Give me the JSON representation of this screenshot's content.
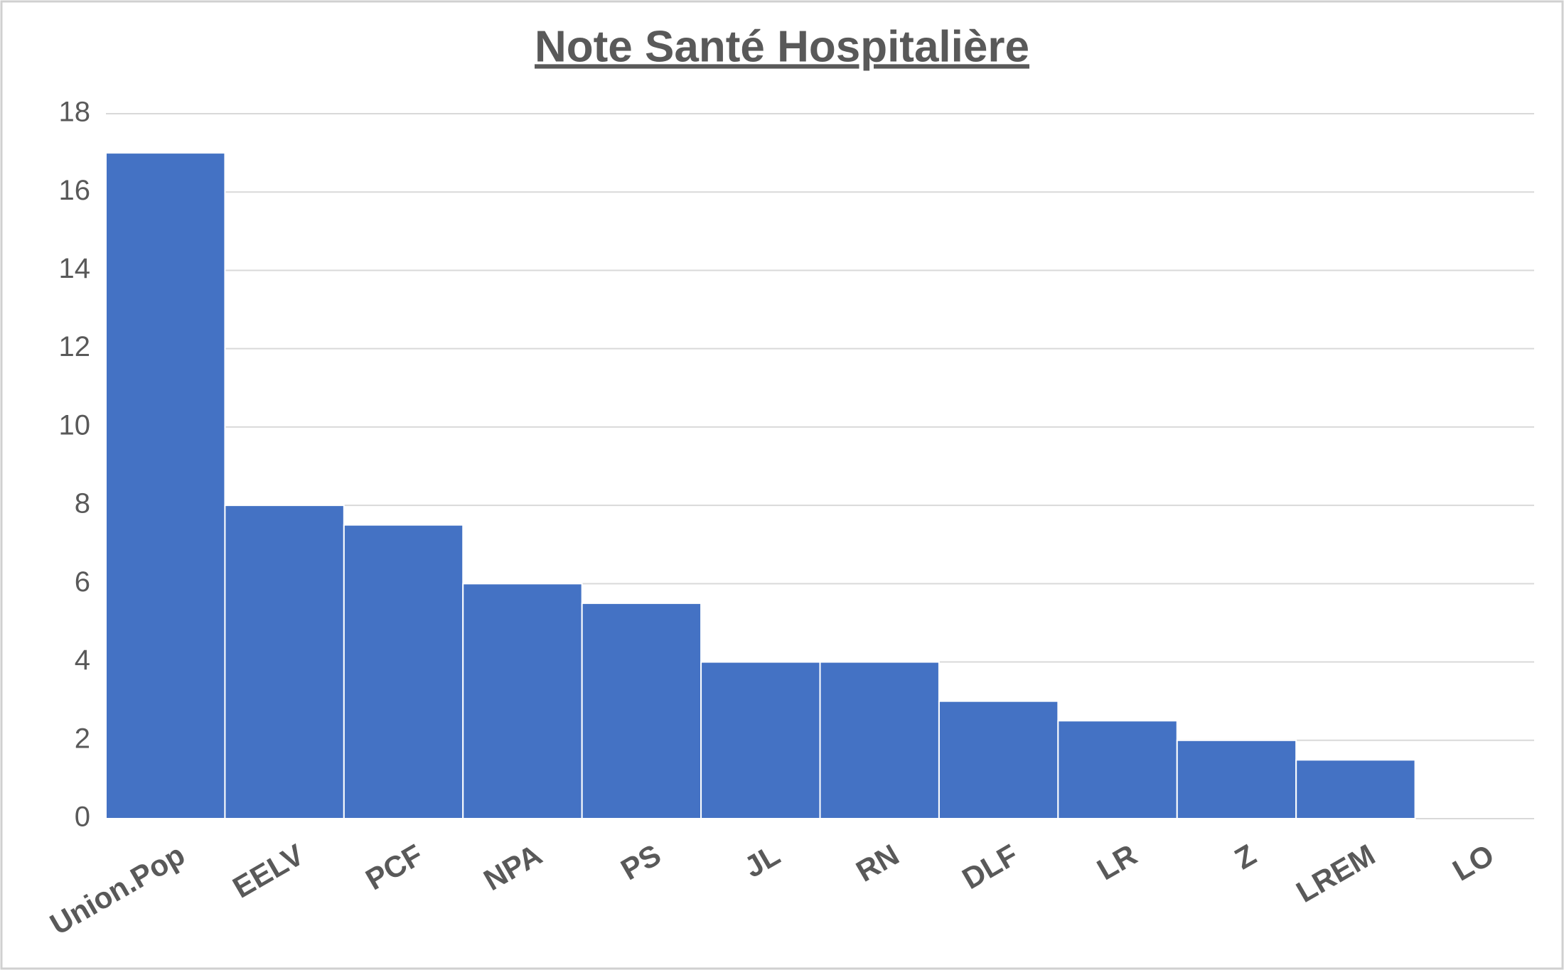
{
  "chart_data": {
    "type": "bar",
    "title": "Note Santé Hospitalière",
    "categories": [
      "Union.Pop",
      "EELV",
      "PCF",
      "NPA",
      "PS",
      "JL",
      "RN",
      "DLF",
      "LR",
      "Z",
      "LREM",
      "LO"
    ],
    "values": [
      17,
      8,
      7.5,
      6,
      5.5,
      4,
      4,
      3,
      2.5,
      2,
      1.5,
      0
    ],
    "color": "#4472c4",
    "ylim": [
      0,
      18
    ],
    "yticks": [
      0,
      2,
      4,
      6,
      8,
      10,
      12,
      14,
      16,
      18
    ],
    "grid": true
  }
}
